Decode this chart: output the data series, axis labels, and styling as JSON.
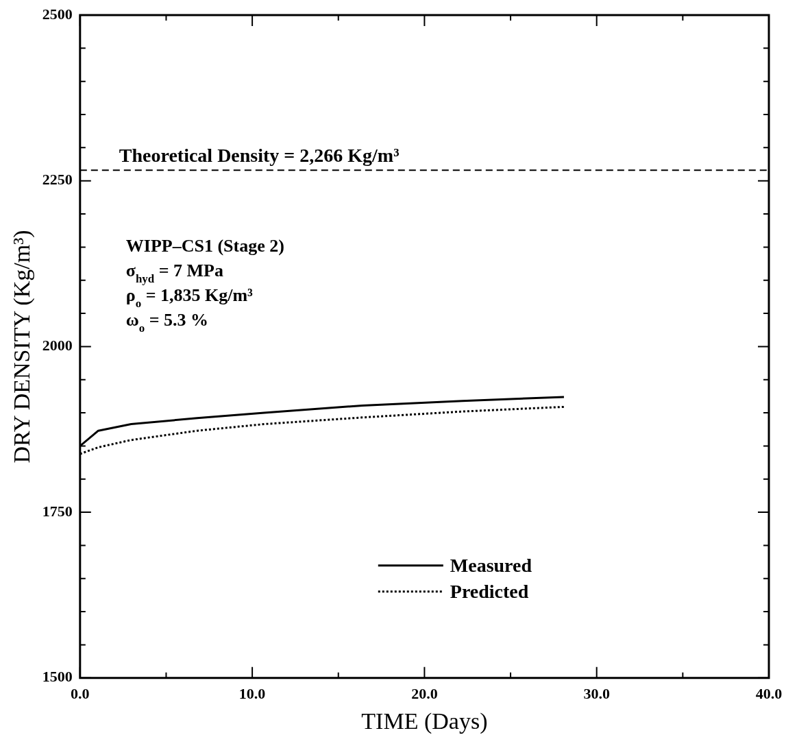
{
  "chart_data": {
    "type": "line",
    "xlabel": "TIME (Days)",
    "ylabel": "DRY DENSITY (Kg/m³)",
    "xlim": [
      0,
      40
    ],
    "ylim": [
      1500,
      2500
    ],
    "xticks": [
      {
        "value": 0,
        "label": "0.0"
      },
      {
        "value": 5,
        "label": null
      },
      {
        "value": 10,
        "label": "10.0"
      },
      {
        "value": 15,
        "label": null
      },
      {
        "value": 20,
        "label": "20.0"
      },
      {
        "value": 25,
        "label": null
      },
      {
        "value": 30,
        "label": "30.0"
      },
      {
        "value": 35,
        "label": null
      },
      {
        "value": 40,
        "label": "40.0"
      }
    ],
    "yticks": [
      1500,
      {
        "value": 1550,
        "label": null
      },
      {
        "value": 1600,
        "label": null
      },
      {
        "value": 1650,
        "label": null
      },
      {
        "value": 1700,
        "label": null
      },
      1750,
      {
        "value": 1800,
        "label": null
      },
      {
        "value": 1850,
        "label": null
      },
      {
        "value": 1900,
        "label": null
      },
      {
        "value": 1950,
        "label": null
      },
      2000,
      {
        "value": 2050,
        "label": null
      },
      {
        "value": 2100,
        "label": null
      },
      {
        "value": 2150,
        "label": null
      },
      {
        "value": 2200,
        "label": null
      },
      2250,
      {
        "value": 2300,
        "label": null
      },
      {
        "value": 2350,
        "label": null
      },
      {
        "value": 2400,
        "label": null
      },
      {
        "value": 2450,
        "label": null
      },
      2500
    ],
    "grid": false,
    "legend": "bottom right",
    "marker": "none",
    "series": [
      {
        "name": "Measured",
        "color": "#000000",
        "line_style": "solid",
        "x": [
          0,
          1.06,
          2.97,
          6.8,
          10.7,
          16.4,
          22.2,
          28.1
        ],
        "values": [
          1850,
          1873,
          1883,
          1892,
          1900,
          1911,
          1918,
          1924
        ]
      },
      {
        "name": "Predicted",
        "color": "#000000",
        "line_style": "dotted",
        "x": [
          0,
          1.06,
          2.97,
          6.8,
          10.7,
          16.4,
          22.2,
          28.1
        ],
        "values": [
          1838,
          1848,
          1859,
          1873,
          1883,
          1893,
          1902,
          1909
        ]
      }
    ],
    "ref_lines": [
      {
        "axis": "y",
        "value": 2266,
        "label": "Theoretical Density = 2,266 Kg/m³",
        "line_style": "dashed",
        "color": "#000000"
      }
    ],
    "annotations": [
      "WIPP–CS1 (Stage 2)",
      "σ$_{hyd}$ = 7 MPa",
      "ρ$_{o}$ = 1,835 Kg/m³",
      "ω$_{o}$ = 5.3 %"
    ]
  }
}
